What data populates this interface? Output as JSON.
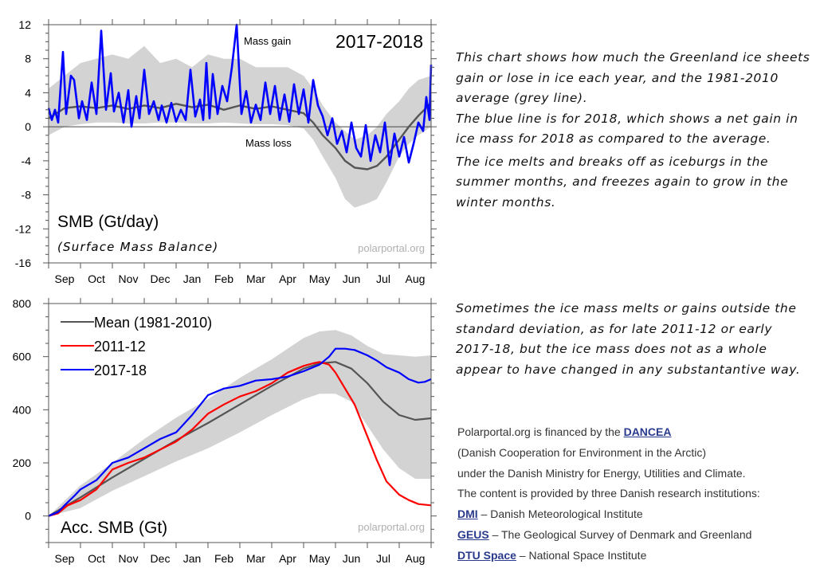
{
  "colors": {
    "blue": "#0000ff",
    "red": "#ff0000",
    "mean": "#555555",
    "band": "#d3d3d3",
    "watermark": "#b0b0b0",
    "link": "#2a3a8c"
  },
  "chart_data": [
    {
      "type": "line",
      "title": "2017-2018",
      "ylabel_title": "SMB (Gt/day)",
      "ylabel_subtitle": "(Surface Mass Balance)",
      "watermark": "polarportal.org",
      "annotations": [
        "Mass gain",
        "Mass loss"
      ],
      "x_ticklabels": [
        "Sep",
        "Oct",
        "Nov",
        "Dec",
        "Jan",
        "Feb",
        "Mar",
        "Apr",
        "May",
        "Jun",
        "Jul",
        "Aug"
      ],
      "y_ticklabels": [
        "12",
        "8",
        "4",
        "0",
        "-4",
        "-8",
        "-12",
        "-16"
      ],
      "ylim": [
        -16,
        12
      ],
      "xlim_months": [
        0,
        12
      ],
      "x_unit": "months since 1 Sep",
      "series": [
        {
          "name": "2017-2018 daily SMB",
          "color": "blue",
          "x": [
            0,
            0.1,
            0.2,
            0.3,
            0.45,
            0.55,
            0.7,
            0.8,
            0.95,
            1.05,
            1.2,
            1.35,
            1.5,
            1.65,
            1.8,
            1.95,
            2.05,
            2.2,
            2.35,
            2.5,
            2.6,
            2.75,
            2.85,
            3.0,
            3.15,
            3.3,
            3.45,
            3.55,
            3.7,
            3.85,
            4.0,
            4.15,
            4.3,
            4.45,
            4.6,
            4.75,
            4.85,
            4.95,
            5.05,
            5.15,
            5.3,
            5.45,
            5.6,
            5.75,
            5.9,
            6.05,
            6.2,
            6.35,
            6.5,
            6.65,
            6.8,
            6.95,
            7.1,
            7.25,
            7.4,
            7.55,
            7.7,
            7.85,
            8.0,
            8.15,
            8.3,
            8.45,
            8.6,
            8.75,
            8.9,
            9.05,
            9.2,
            9.35,
            9.5,
            9.65,
            9.8,
            9.95,
            10.1,
            10.25,
            10.4,
            10.55,
            10.7,
            10.85,
            11.0,
            11.15,
            11.3,
            11.45,
            11.6,
            11.75,
            11.85,
            11.95,
            12.0
          ],
          "y": [
            2.2,
            0.8,
            2.0,
            0.5,
            8.8,
            1.5,
            6.0,
            5.5,
            1.0,
            3.0,
            0.8,
            5.2,
            1.5,
            11.3,
            2.0,
            6.3,
            1.8,
            4.0,
            0.5,
            4.3,
            0.0,
            3.6,
            1.0,
            6.7,
            1.5,
            3.0,
            0.8,
            2.5,
            0.5,
            2.8,
            0.6,
            2.0,
            0.8,
            6.7,
            1.2,
            3.2,
            0.8,
            7.5,
            1.0,
            6.2,
            1.5,
            4.8,
            3.0,
            7.0,
            12.0,
            1.5,
            4.2,
            0.5,
            2.6,
            0.8,
            5.2,
            1.5,
            4.8,
            0.8,
            3.8,
            0.6,
            5.0,
            1.5,
            4.4,
            0.5,
            5.5,
            2.5,
            1.2,
            -1.0,
            1.0,
            -2.0,
            -0.5,
            -3.0,
            0.5,
            -2.5,
            -3.5,
            0.2,
            -4.0,
            -1.0,
            -3.0,
            0.5,
            -4.5,
            -0.8,
            -3.5,
            -1.2,
            -4.2,
            -2.0,
            0.5,
            -0.5,
            3.5,
            0.8,
            7.3
          ]
        },
        {
          "name": "Mean (1981-2010)",
          "color": "mean",
          "x": [
            0,
            0.5,
            1.0,
            1.5,
            2.0,
            2.5,
            3.0,
            3.5,
            4.0,
            4.5,
            5.0,
            5.5,
            6.0,
            6.5,
            7.0,
            7.5,
            8.0,
            8.3,
            8.6,
            9.0,
            9.3,
            9.6,
            10.0,
            10.3,
            10.6,
            11.0,
            11.3,
            11.6,
            12.0
          ],
          "y": [
            1.0,
            2.2,
            2.4,
            2.2,
            2.5,
            2.1,
            2.5,
            2.2,
            2.7,
            2.3,
            2.6,
            2.0,
            2.5,
            2.1,
            2.4,
            2.0,
            1.6,
            0.5,
            -1.0,
            -2.5,
            -4.0,
            -4.8,
            -5.0,
            -4.6,
            -3.5,
            -1.5,
            0.0,
            1.3,
            2.8
          ]
        },
        {
          "name": "standard deviation band",
          "color": "band",
          "x": [
            0,
            0.5,
            1.0,
            1.5,
            2.0,
            2.5,
            3.0,
            3.5,
            4.0,
            4.5,
            5.0,
            5.5,
            6.0,
            6.5,
            7.0,
            7.5,
            8.0,
            8.3,
            8.6,
            9.0,
            9.3,
            9.6,
            10.0,
            10.3,
            10.6,
            11.0,
            11.3,
            11.6,
            12.0
          ],
          "upper": [
            4.5,
            6.0,
            7.5,
            8.0,
            8.5,
            8.0,
            9.5,
            7.5,
            8.0,
            7.0,
            8.5,
            8.0,
            8.0,
            7.0,
            7.0,
            7.0,
            6.0,
            4.5,
            2.5,
            0.5,
            -0.5,
            -1.5,
            -1.0,
            0.0,
            1.5,
            3.0,
            4.5,
            5.5,
            6.0
          ],
          "lower": [
            -1.0,
            0.0,
            0.3,
            0.5,
            0.5,
            0.4,
            0.4,
            0.5,
            0.5,
            0.4,
            0.4,
            0.5,
            0.4,
            0.3,
            0.3,
            0.2,
            -0.2,
            -1.5,
            -3.5,
            -6.0,
            -8.5,
            -9.5,
            -9.0,
            -8.5,
            -6.5,
            -3.5,
            -2.0,
            -1.0,
            0.0
          ]
        }
      ]
    },
    {
      "type": "line",
      "title": "Acc. SMB (Gt)",
      "watermark": "polarportal.org",
      "x_ticklabels": [
        "Sep",
        "Oct",
        "Nov",
        "Dec",
        "Jan",
        "Feb",
        "Mar",
        "Apr",
        "May",
        "Jun",
        "Jul",
        "Aug"
      ],
      "y_ticklabels": [
        "800",
        "600",
        "400",
        "200",
        "0"
      ],
      "ylim": [
        -100,
        800
      ],
      "xlim_months": [
        0,
        12
      ],
      "x_unit": "months since 1 Sep",
      "legend": {
        "position": "top-left",
        "entries": [
          {
            "label": "Mean (1981-2010)",
            "color": "mean"
          },
          {
            "label": "2011-12",
            "color": "red"
          },
          {
            "label": "2017-18",
            "color": "blue"
          }
        ]
      },
      "series": [
        {
          "name": "Mean (1981-2010)",
          "color": "mean",
          "x": [
            0,
            1,
            2,
            3,
            4,
            5,
            6,
            7,
            8,
            8.5,
            9,
            9.5,
            10,
            10.5,
            11,
            11.5,
            12
          ],
          "y": [
            0,
            70,
            145,
            215,
            285,
            350,
            420,
            490,
            555,
            575,
            580,
            555,
            500,
            430,
            380,
            362,
            368
          ]
        },
        {
          "name": "2011-12",
          "color": "red",
          "x": [
            0,
            0.3,
            0.6,
            1,
            1.5,
            2,
            2.5,
            3,
            3.5,
            4,
            4.5,
            5,
            5.5,
            6,
            6.5,
            7,
            7.5,
            8,
            8.3,
            8.5,
            8.8,
            9,
            9.3,
            9.6,
            10,
            10.3,
            10.6,
            11,
            11.3,
            11.6,
            12
          ],
          "y": [
            0,
            10,
            40,
            60,
            100,
            175,
            200,
            220,
            250,
            280,
            325,
            385,
            420,
            450,
            470,
            500,
            540,
            565,
            575,
            580,
            570,
            540,
            480,
            420,
            300,
            210,
            130,
            80,
            60,
            45,
            40
          ]
        },
        {
          "name": "2017-18",
          "color": "blue",
          "x": [
            0,
            0.3,
            0.5,
            0.8,
            1,
            1.5,
            2,
            2.5,
            3,
            3.5,
            4,
            4.5,
            5,
            5.5,
            6,
            6.5,
            7,
            7.5,
            8,
            8.5,
            8.8,
            9,
            9.3,
            9.6,
            10,
            10.3,
            10.6,
            11,
            11.3,
            11.6,
            11.8,
            12
          ],
          "y": [
            0,
            15,
            40,
            75,
            100,
            135,
            200,
            220,
            255,
            290,
            315,
            380,
            455,
            480,
            490,
            510,
            515,
            525,
            545,
            570,
            600,
            630,
            630,
            625,
            605,
            585,
            560,
            540,
            515,
            502,
            505,
            515
          ]
        },
        {
          "name": "standard deviation band",
          "color": "band",
          "x": [
            0,
            1,
            2,
            3,
            4,
            5,
            6,
            7,
            8,
            8.5,
            9,
            9.5,
            10,
            10.5,
            11,
            11.5,
            12
          ],
          "upper": [
            0,
            115,
            200,
            290,
            370,
            440,
            520,
            590,
            670,
            695,
            700,
            680,
            640,
            610,
            605,
            600,
            605
          ],
          "lower": [
            0,
            30,
            95,
            150,
            205,
            255,
            315,
            380,
            440,
            460,
            460,
            430,
            340,
            250,
            180,
            140,
            140
          ]
        }
      ]
    }
  ],
  "text": {
    "top_description": [
      "This chart shows how much the Greenland ice sheets gain or lose in ice each year, and the 1981-2010 average (grey line).",
      "The blue line is for 2018, which shows a net gain in ice mass for 2018 as compared to the average.",
      "The ice melts and breaks off as iceburgs in the summer months, and freezes again to grow in the winter months."
    ],
    "bottom_description": "Sometimes the ice mass melts or gains outside the standard deviation, as for late 2011-12 or early 2017-18, but the ice mass does not as a whole appear to have changed in any substantantive way."
  },
  "credits": {
    "line1_prefix": "Polarportal.org is financed by the ",
    "line1_link": "DANCEA",
    "line2": "(Danish Cooperation for Environment in the Arctic)",
    "line3": "under the Danish Ministry for Energy, Utilities and Climate.",
    "line4": "The content is provided by three Danish research institutions:",
    "institutions": [
      {
        "link": "DMI",
        "text": " – Danish Meteorological Institute"
      },
      {
        "link": "GEUS",
        "text": " – The Geological Survey of Denmark and Greenland"
      },
      {
        "link": "DTU Space",
        "text": " – National Space Institute"
      }
    ]
  }
}
